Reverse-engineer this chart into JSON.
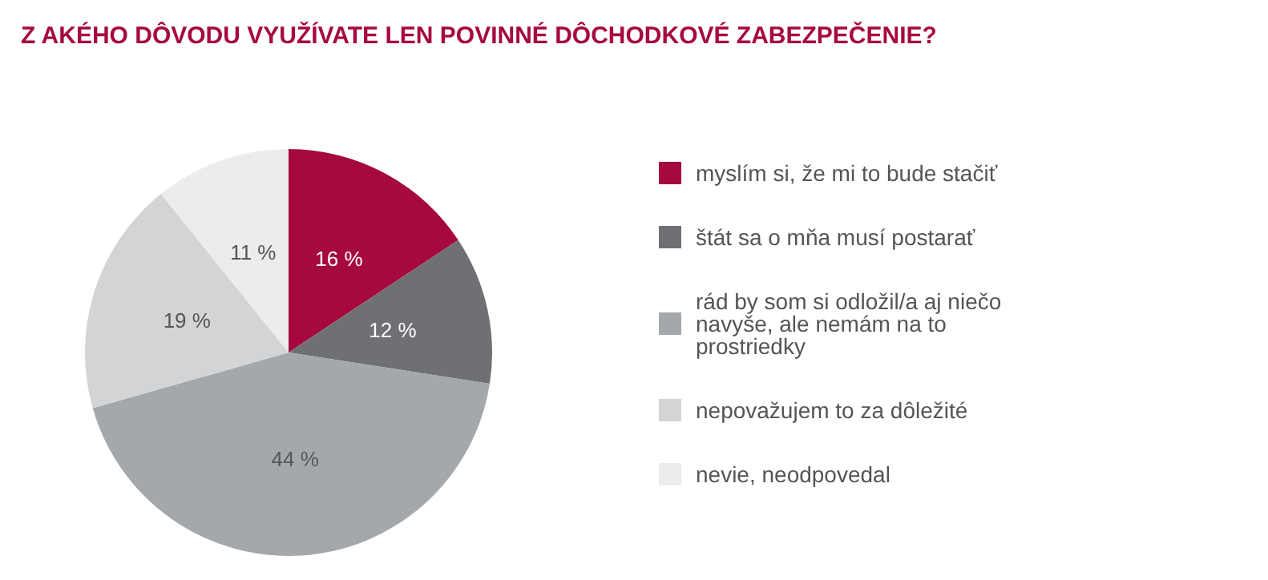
{
  "chart_data": {
    "type": "pie",
    "title": "Z AKÉHO DÔVODU VYUŽÍVATE LEN POVINNÉ DÔCHODKOVÉ ZABEZPEČENIE?",
    "categories": [
      "myslím si, že mi to bude stačiť",
      "štát sa o mňa musí postarať",
      "rád by som si odložil/a aj niečo navyše, ale nemám na to prostriedky",
      "nepovažujem to za dôležité",
      "nevie, neodpovedal"
    ],
    "values": [
      16,
      12,
      44,
      19,
      11
    ],
    "value_labels": [
      "16 %",
      "12 %",
      "44 %",
      "19 %",
      "11 %"
    ],
    "colors": [
      "#a6093d",
      "#6e7074",
      "#a5a8ab",
      "#d2d4d6",
      "#ececec"
    ],
    "legend": "right"
  }
}
